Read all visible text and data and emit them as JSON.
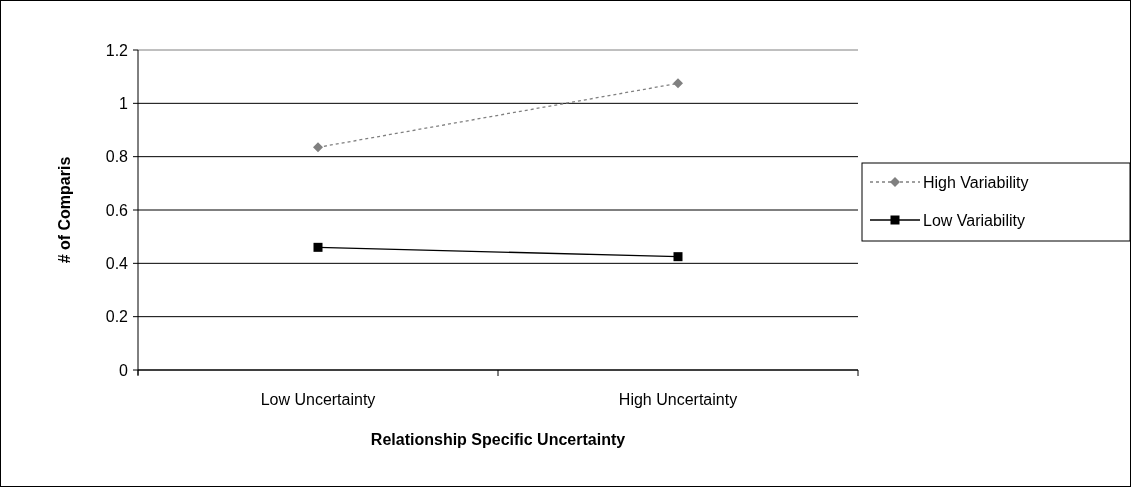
{
  "chart_data": {
    "type": "line",
    "xlabel": "Relationship Specific Uncertainty",
    "ylabel": "# of Comparis",
    "categories": [
      "Low Uncertainty",
      "High Uncertainty"
    ],
    "series": [
      {
        "name": "High Variability",
        "color": "#808080",
        "values": [
          0.835,
          1.075
        ],
        "marker": "diamond",
        "line_style": "dotted"
      },
      {
        "name": "Low Variability",
        "color": "#000000",
        "values": [
          0.46,
          0.425
        ],
        "marker": "square",
        "line_style": "solid"
      }
    ],
    "ylim": [
      0,
      1.2
    ],
    "yticks": [
      0,
      0.2,
      0.4,
      0.6,
      0.8,
      1,
      1.2
    ],
    "grid": "y",
    "legend": "right"
  }
}
